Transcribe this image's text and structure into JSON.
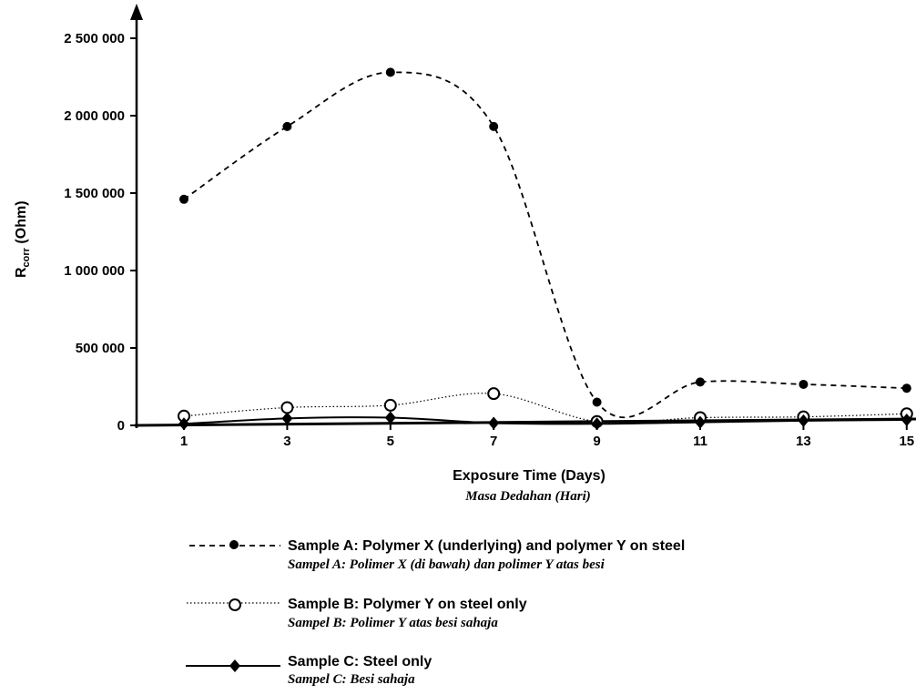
{
  "chart_data": {
    "type": "line",
    "title": "",
    "xlabel": "Exposure Time (Days)",
    "xlabel_secondary": "Masa Dedahan (Hari)",
    "ylabel": "Rcorr (Ohm)",
    "ylabel_main": "R",
    "ylabel_sub": "corr",
    "ylabel_unit": "(Ohm)",
    "x": [
      1,
      3,
      5,
      7,
      9,
      11,
      13,
      15
    ],
    "x_tick_labels": [
      "1",
      "3",
      "5",
      "7",
      "9",
      "11",
      "13",
      "15"
    ],
    "y_ticks": [
      0,
      500000,
      1000000,
      1500000,
      2000000,
      2500000
    ],
    "y_tick_labels": [
      "0",
      "500 000",
      "1 000 000",
      "1 500 000",
      "2 000 000",
      "2 500 000"
    ],
    "ylim": [
      0,
      2500000
    ],
    "grid": false,
    "legend_position": "bottom",
    "series": [
      {
        "name": "Sample A: Polymer X (underlying) and polymer Y on steel",
        "name_secondary": "Sampel A: Polimer X (di bawah) dan polimer Y atas besi",
        "line_style": "dashed",
        "marker": "filled-circle",
        "values": [
          1460000,
          1930000,
          2280000,
          1930000,
          150000,
          280000,
          265000,
          240000
        ]
      },
      {
        "name": "Sample B: Polymer Y on steel only",
        "name_secondary": "Sampel B: Polimer Y atas besi sahaja",
        "line_style": "dotted",
        "marker": "open-circle",
        "values": [
          60000,
          115000,
          130000,
          205000,
          25000,
          50000,
          55000,
          75000
        ]
      },
      {
        "name": "Sample C: Steel only",
        "name_secondary": "Sampel C: Besi sahaja",
        "line_style": "solid",
        "marker": "filled-diamond",
        "values": [
          10000,
          45000,
          50000,
          15000,
          10000,
          20000,
          30000,
          35000
        ]
      }
    ]
  }
}
